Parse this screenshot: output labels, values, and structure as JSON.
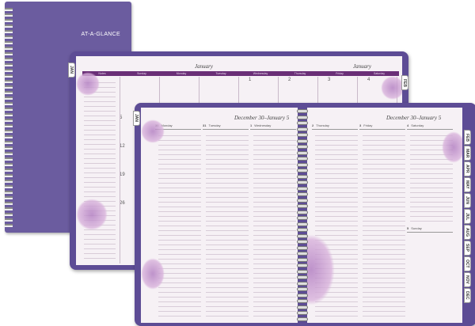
{
  "cover": {
    "brand": "AT-A-GLANCE",
    "color": "#6b5c9f"
  },
  "monthly": {
    "title_left": "January",
    "title_right": "January",
    "tab_left": "JAN",
    "tab_right": "FEB",
    "header": [
      "Notes",
      "Sunday",
      "Monday",
      "Tuesday",
      "Wednesday",
      "Thursday",
      "Friday",
      "Saturday"
    ],
    "week_numbers": [
      "5",
      "12",
      "19",
      "26"
    ],
    "first_row": [
      "1",
      "2",
      "3",
      "4"
    ]
  },
  "weekly": {
    "title_left": "December 30–January 5",
    "title_right": "December 30–January 5",
    "tab_left": "JAN",
    "days_left": [
      {
        "num": "30",
        "name": "Monday"
      },
      {
        "num": "31",
        "name": "Tuesday"
      },
      {
        "num": "1",
        "name": "Wednesday"
      }
    ],
    "days_right": [
      {
        "num": "2",
        "name": "Thursday"
      },
      {
        "num": "3",
        "name": "Friday"
      },
      {
        "num": "4",
        "name": "Saturday"
      }
    ],
    "sunday": {
      "num": "5",
      "name": "Sunday"
    },
    "month_tabs": [
      "FEB",
      "MAR",
      "APR",
      "MAY",
      "JUN",
      "JUL",
      "AUG",
      "SEP",
      "OCT",
      "NOV",
      "DEC"
    ]
  },
  "colors": {
    "purple": "#5d4c95",
    "bar": "#6a2f77",
    "page": "#f6f1f5"
  }
}
